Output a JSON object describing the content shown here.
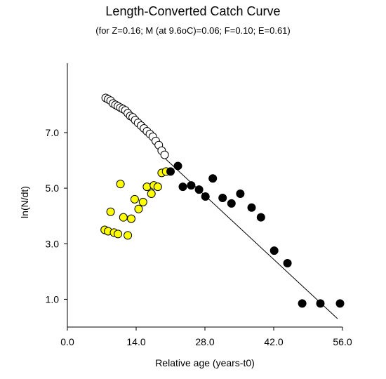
{
  "chart_data": {
    "type": "scatter",
    "title": "Length-Converted Catch Curve",
    "subtitle": "(for Z=0.16; M (at 9.6oC)=0.06; F=0.10; E=0.61)",
    "xlabel": "Relative age (years-t0)",
    "ylabel": "ln(N/dt)",
    "xlim": [
      0,
      56
    ],
    "ylim": [
      0,
      9.5
    ],
    "x_ticks": [
      0,
      14,
      28,
      42,
      56
    ],
    "x_tick_labels": [
      "0.0",
      "14.0",
      "28.0",
      "42.0",
      "56.0"
    ],
    "y_ticks": [
      1,
      3,
      5,
      7
    ],
    "y_tick_labels": [
      "1.0",
      "3.0",
      "5.0",
      "7.0"
    ],
    "grid": false,
    "colors": {
      "unused_points": "#ffffff",
      "ascending_points": "#ffff00",
      "regression_points": "#000000",
      "line": "#000000"
    },
    "series": [
      {
        "marker": "open-circle",
        "x": [
          7.8,
          8.3,
          8.8,
          9.3,
          9.8,
          10.3,
          10.8,
          11.3,
          11.8,
          12.3,
          12.8,
          13.3,
          13.8,
          14.4,
          15.0,
          15.6,
          16.2,
          16.8,
          17.4,
          18.0,
          18.6,
          19.2,
          19.8
        ],
        "y": [
          8.25,
          8.2,
          8.15,
          8.05,
          8.0,
          7.95,
          7.9,
          7.85,
          7.8,
          7.7,
          7.6,
          7.55,
          7.45,
          7.35,
          7.25,
          7.15,
          7.05,
          6.95,
          6.85,
          6.7,
          6.55,
          6.35,
          6.2
        ]
      },
      {
        "marker": "yellow-circle",
        "x": [
          7.6,
          8.3,
          8.8,
          9.5,
          10.3,
          10.8,
          11.4,
          12.3,
          13.0,
          13.7,
          14.5,
          15.4,
          16.2,
          17.1,
          17.6,
          18.4,
          19.2,
          20.1
        ],
        "y": [
          3.5,
          3.45,
          4.15,
          3.4,
          3.35,
          5.15,
          3.95,
          3.3,
          3.9,
          4.6,
          4.25,
          4.5,
          5.05,
          4.8,
          5.1,
          5.05,
          5.55,
          5.6
        ]
      },
      {
        "marker": "filled-circle",
        "x": [
          21.0,
          22.5,
          23.5,
          25.2,
          26.8,
          28.1,
          29.6,
          31.6,
          33.4,
          35.2,
          37.5,
          39.4,
          42.1,
          44.8,
          47.8,
          51.5,
          55.5
        ],
        "y": [
          5.6,
          5.8,
          5.05,
          5.1,
          4.95,
          4.7,
          5.35,
          4.65,
          4.45,
          4.8,
          4.3,
          3.95,
          2.75,
          2.3,
          0.85,
          0.85,
          0.85
        ]
      }
    ],
    "regression_line": {
      "x": [
        20.0,
        55.0
      ],
      "y": [
        6.05,
        0.3
      ]
    }
  }
}
